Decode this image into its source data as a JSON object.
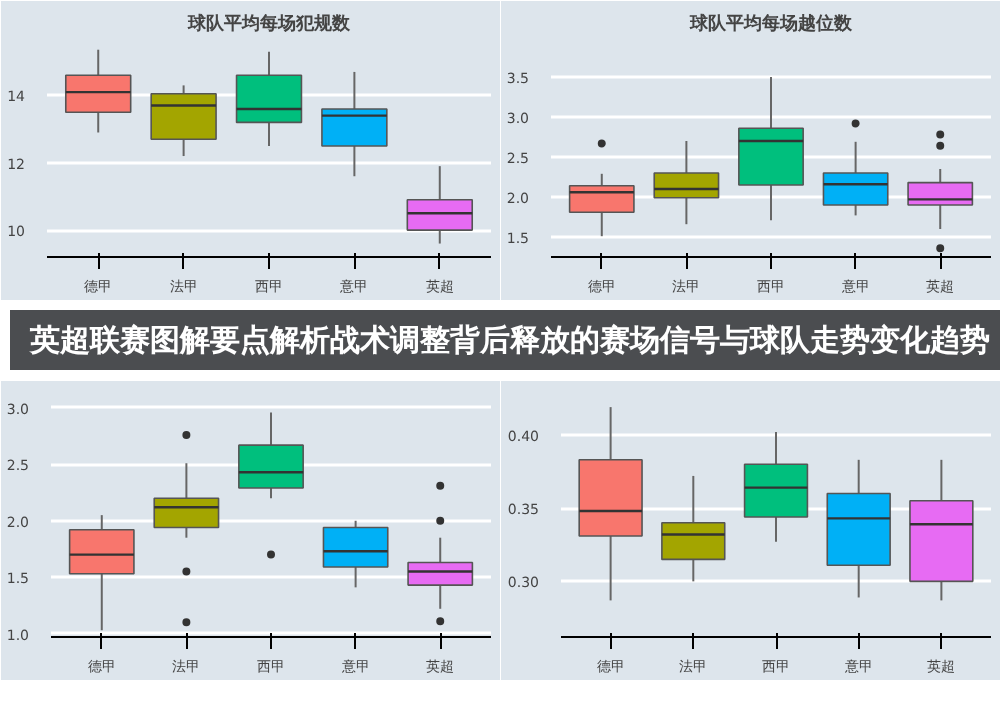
{
  "chart_data": [
    {
      "type": "box",
      "title": "球队平均每场犯规数",
      "categories": [
        "德甲",
        "法甲",
        "西甲",
        "意甲",
        "英超"
      ],
      "colors": [
        "#f8766d",
        "#a3a500",
        "#00bf7d",
        "#00b0f6",
        "#e76bf3"
      ],
      "ylim": [
        9.2,
        15.5
      ],
      "yticks": [
        10,
        12,
        14
      ],
      "grid": "y",
      "boxes": [
        {
          "low": 12.9,
          "q1": 13.5,
          "median": 14.1,
          "q3": 14.6,
          "high": 15.36
        },
        {
          "low": 12.2,
          "q1": 12.7,
          "median": 13.7,
          "q3": 14.05,
          "high": 14.3
        },
        {
          "low": 12.5,
          "q1": 13.2,
          "median": 13.6,
          "q3": 14.6,
          "high": 15.3
        },
        {
          "low": 11.6,
          "q1": 12.5,
          "median": 13.4,
          "q3": 13.6,
          "high": 14.7
        },
        {
          "low": 9.6,
          "q1": 10.0,
          "median": 10.5,
          "q3": 10.9,
          "high": 11.9
        }
      ]
    },
    {
      "type": "box",
      "title": "球队平均每场越位数",
      "categories": [
        "德甲",
        "法甲",
        "西甲",
        "意甲",
        "英超"
      ],
      "colors": [
        "#f8766d",
        "#a3a500",
        "#00bf7d",
        "#00b0f6",
        "#e76bf3"
      ],
      "ylim": [
        1.25,
        3.9
      ],
      "yticks": [
        {
          "value": 1.5,
          "label": "1.5"
        },
        {
          "value": 2,
          "label": "2.0"
        },
        {
          "value": 2.5,
          "label": "2.5"
        },
        {
          "value": 3,
          "label": "3.0"
        },
        {
          "value": 3.5,
          "label": "3.5"
        }
      ],
      "grid": "y",
      "boxes": [
        {
          "low": 1.51,
          "q1": 1.81,
          "median": 2.06,
          "q3": 2.14,
          "high": 2.29,
          "outliers": [
            2.67
          ]
        },
        {
          "low": 1.66,
          "q1": 1.99,
          "median": 2.1,
          "q3": 2.3,
          "high": 2.7
        },
        {
          "low": 1.71,
          "q1": 2.15,
          "median": 2.7,
          "q3": 2.86,
          "high": 3.5
        },
        {
          "low": 1.77,
          "q1": 1.9,
          "median": 2.16,
          "q3": 2.3,
          "high": 2.69,
          "outliers": [
            2.92
          ]
        },
        {
          "low": 1.6,
          "q1": 1.9,
          "median": 1.97,
          "q3": 2.18,
          "high": 2.35,
          "outliers": [
            2.78,
            2.64,
            1.36
          ]
        }
      ]
    },
    {
      "type": "other",
      "title": "英超联赛图解要点解析战术调整背后释放的赛场信号与球队走势变化趋势"
    },
    {
      "type": "box",
      "categories": [
        "德甲",
        "法甲",
        "西甲",
        "意甲",
        "英超"
      ],
      "colors": [
        "#f8766d",
        "#a3a500",
        "#00bf7d",
        "#00b0f6",
        "#e76bf3"
      ],
      "ylim": [
        0.97,
        3.15
      ],
      "yticks": [
        {
          "value": 1,
          "label": "1.0"
        },
        {
          "value": 1.5,
          "label": "1.5"
        },
        {
          "value": 2,
          "label": "2.0"
        },
        {
          "value": 2.5,
          "label": "2.5"
        },
        {
          "value": 3,
          "label": "3.0"
        }
      ],
      "grid": "y",
      "boxes": [
        {
          "low": 1.03,
          "q1": 1.53,
          "median": 1.7,
          "q3": 1.92,
          "high": 2.05
        },
        {
          "low": 1.85,
          "q1": 1.94,
          "median": 2.12,
          "q3": 2.2,
          "high": 2.51,
          "outliers": [
            2.76,
            1.55,
            1.1
          ]
        },
        {
          "low": 2.2,
          "q1": 2.29,
          "median": 2.43,
          "q3": 2.67,
          "high": 2.96,
          "outliers": [
            1.7
          ]
        },
        {
          "low": 1.41,
          "q1": 1.59,
          "median": 1.73,
          "q3": 1.94,
          "high": 2.0
        },
        {
          "low": 1.22,
          "q1": 1.43,
          "median": 1.55,
          "q3": 1.63,
          "high": 1.85,
          "outliers": [
            2.31,
            2.0,
            1.11
          ]
        }
      ]
    },
    {
      "type": "box",
      "categories": [
        "德甲",
        "法甲",
        "西甲",
        "意甲",
        "英超"
      ],
      "colors": [
        "#f8766d",
        "#a3a500",
        "#00bf7d",
        "#00b0f6",
        "#e76bf3"
      ],
      "ylim": [
        0.262,
        0.43
      ],
      "yticks": [
        {
          "value": 0.3,
          "label": "0.30"
        },
        {
          "value": 0.35,
          "label": "0.35"
        },
        {
          "value": 0.4,
          "label": "0.40"
        }
      ],
      "grid": "y",
      "boxes": [
        {
          "low": 0.287,
          "q1": 0.331,
          "median": 0.348,
          "q3": 0.383,
          "high": 0.419
        },
        {
          "low": 0.3,
          "q1": 0.315,
          "median": 0.332,
          "q3": 0.34,
          "high": 0.372
        },
        {
          "low": 0.327,
          "q1": 0.344,
          "median": 0.364,
          "q3": 0.38,
          "high": 0.402
        },
        {
          "low": 0.289,
          "q1": 0.311,
          "median": 0.343,
          "q3": 0.36,
          "high": 0.383
        },
        {
          "low": 0.287,
          "q1": 0.3,
          "median": 0.339,
          "q3": 0.355,
          "high": 0.383
        }
      ]
    }
  ]
}
